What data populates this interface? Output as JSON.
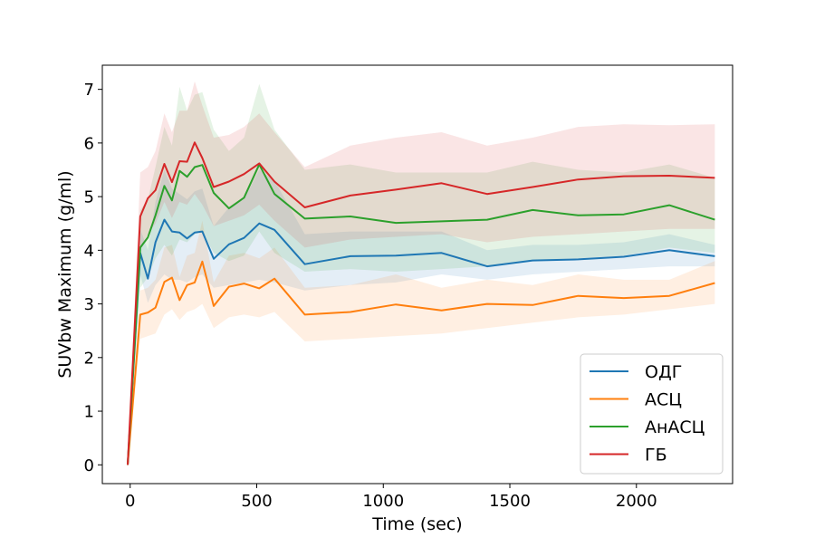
{
  "chart_data": {
    "type": "line",
    "title": "",
    "xlabel": "Time (sec)",
    "ylabel": "SUVbw Maximum (g/ml)",
    "xlim": [
      -110,
      2380
    ],
    "ylim": [
      -0.35,
      7.45
    ],
    "xticks": [
      0,
      500,
      1000,
      1500,
      2000
    ],
    "yticks": [
      0,
      1,
      2,
      3,
      4,
      5,
      6,
      7
    ],
    "grid": false,
    "legend_position": "lower-right",
    "x": [
      -10,
      40,
      70,
      100,
      135,
      165,
      195,
      225,
      255,
      285,
      330,
      390,
      450,
      510,
      570,
      690,
      870,
      1050,
      1230,
      1410,
      1590,
      1770,
      1950,
      2130,
      2310
    ],
    "series": [
      {
        "name": "ОДГ",
        "color": "#1f77b4",
        "values": [
          0.0,
          3.95,
          3.47,
          4.15,
          4.57,
          4.35,
          4.33,
          4.22,
          4.33,
          4.35,
          3.84,
          4.11,
          4.23,
          4.5,
          4.38,
          3.74,
          3.89,
          3.9,
          3.95,
          3.7,
          3.81,
          3.83,
          3.88,
          4.0,
          3.89
        ],
        "band_low": [
          0.0,
          3.55,
          3.02,
          3.35,
          3.55,
          3.45,
          3.45,
          3.4,
          3.5,
          3.55,
          3.3,
          3.35,
          3.4,
          3.45,
          3.4,
          3.25,
          3.35,
          3.4,
          3.55,
          3.45,
          3.55,
          3.6,
          3.65,
          3.7,
          3.7
        ],
        "band_high": [
          0.0,
          4.4,
          4.0,
          4.9,
          5.5,
          5.15,
          5.05,
          4.95,
          5.1,
          5.15,
          4.45,
          4.8,
          4.95,
          5.5,
          5.3,
          4.3,
          4.35,
          4.35,
          4.35,
          4.0,
          4.1,
          4.1,
          4.15,
          4.3,
          4.1
        ]
      },
      {
        "name": "АСЦ",
        "color": "#ff7f0e",
        "values": [
          0.0,
          2.8,
          2.84,
          2.93,
          3.41,
          3.49,
          3.07,
          3.35,
          3.4,
          3.79,
          2.96,
          3.32,
          3.38,
          3.29,
          3.47,
          2.8,
          2.85,
          2.99,
          2.88,
          3.0,
          2.98,
          3.15,
          3.11,
          3.15,
          3.39
        ],
        "band_low": [
          0.0,
          2.35,
          2.4,
          2.45,
          2.8,
          2.9,
          2.7,
          2.85,
          2.9,
          3.0,
          2.55,
          2.75,
          2.8,
          2.75,
          2.85,
          2.3,
          2.35,
          2.4,
          2.45,
          2.55,
          2.65,
          2.75,
          2.8,
          2.9,
          3.0
        ],
        "band_high": [
          0.0,
          3.25,
          3.3,
          3.45,
          4.05,
          4.1,
          3.5,
          3.9,
          3.95,
          4.55,
          3.4,
          3.9,
          3.95,
          3.85,
          4.05,
          3.3,
          3.35,
          3.55,
          3.3,
          3.45,
          3.35,
          3.55,
          3.45,
          3.45,
          3.8
        ]
      },
      {
        "name": "АнАСЦ",
        "color": "#2ca02c",
        "values": [
          0.0,
          4.05,
          4.24,
          4.65,
          5.2,
          4.93,
          5.48,
          5.37,
          5.55,
          5.59,
          5.07,
          4.78,
          4.98,
          5.6,
          5.05,
          4.59,
          4.63,
          4.51,
          4.54,
          4.57,
          4.75,
          4.65,
          4.67,
          4.84,
          4.57
        ],
        "band_low": [
          0.0,
          3.3,
          3.5,
          3.85,
          4.1,
          3.9,
          4.2,
          4.15,
          4.3,
          4.35,
          3.95,
          3.8,
          3.9,
          4.35,
          3.95,
          3.6,
          3.65,
          3.6,
          3.65,
          3.7,
          3.8,
          3.85,
          3.9,
          4.05,
          3.95
        ],
        "band_high": [
          0.0,
          4.75,
          4.95,
          5.55,
          6.3,
          5.95,
          7.05,
          6.6,
          6.9,
          6.95,
          6.25,
          5.85,
          6.1,
          7.1,
          6.25,
          5.5,
          5.6,
          5.45,
          5.45,
          5.45,
          5.65,
          5.5,
          5.45,
          5.6,
          5.35
        ]
      },
      {
        "name": "ГБ",
        "color": "#d62728",
        "values": [
          0.0,
          4.63,
          4.97,
          5.12,
          5.61,
          5.27,
          5.66,
          5.65,
          6.01,
          5.72,
          5.18,
          5.28,
          5.42,
          5.62,
          5.28,
          4.8,
          5.02,
          5.13,
          5.25,
          5.05,
          5.18,
          5.32,
          5.38,
          5.39,
          5.35
        ],
        "band_low": [
          0.0,
          4.05,
          4.3,
          4.5,
          4.9,
          4.6,
          4.9,
          4.85,
          5.05,
          4.85,
          4.45,
          4.55,
          4.65,
          4.85,
          4.55,
          4.05,
          4.2,
          4.25,
          4.3,
          4.15,
          4.25,
          4.3,
          4.35,
          4.4,
          4.4
        ],
        "band_high": [
          0.0,
          5.45,
          5.55,
          5.85,
          6.55,
          6.2,
          6.6,
          6.6,
          7.15,
          6.7,
          6.1,
          6.15,
          6.3,
          6.55,
          6.2,
          5.55,
          5.95,
          6.1,
          6.2,
          5.95,
          6.1,
          6.3,
          6.35,
          6.33,
          6.35
        ]
      }
    ]
  }
}
